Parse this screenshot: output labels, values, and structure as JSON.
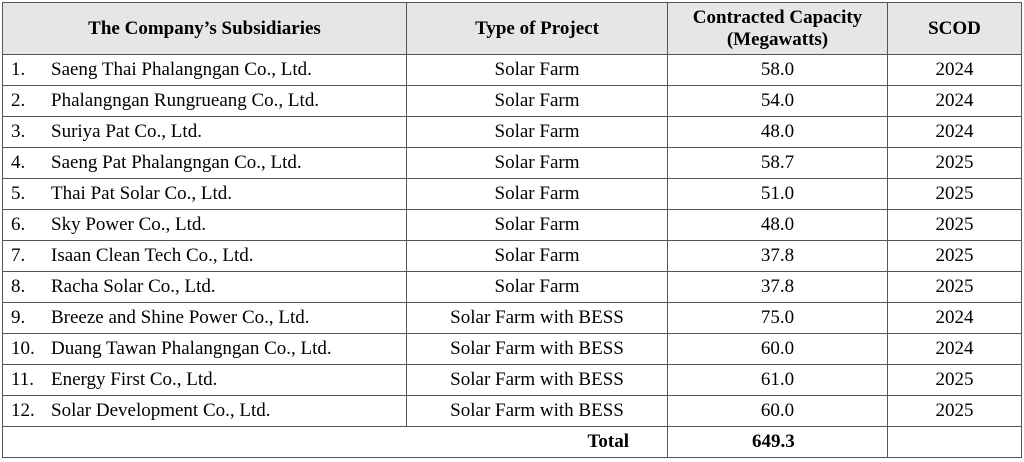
{
  "table": {
    "headers": {
      "subsidiary": "The Company’s Subsidiaries",
      "project_type": "Type of Project",
      "capacity_line1": "Contracted Capacity",
      "capacity_line2": "(Megawatts)",
      "scod": "SCOD"
    },
    "rows": [
      {
        "num": "1.",
        "name": "Saeng Thai Phalangngan Co., Ltd.",
        "type": "Solar Farm",
        "capacity": "58.0",
        "scod": "2024"
      },
      {
        "num": "2.",
        "name": "Phalangngan Rungrueang Co., Ltd.",
        "type": "Solar Farm",
        "capacity": "54.0",
        "scod": "2024"
      },
      {
        "num": "3.",
        "name": "Suriya Pat Co., Ltd.",
        "type": "Solar Farm",
        "capacity": "48.0",
        "scod": "2024"
      },
      {
        "num": "4.",
        "name": "Saeng Pat Phalangngan Co., Ltd.",
        "type": "Solar Farm",
        "capacity": "58.7",
        "scod": "2025"
      },
      {
        "num": "5.",
        "name": "Thai Pat Solar Co., Ltd.",
        "type": "Solar Farm",
        "capacity": "51.0",
        "scod": "2025"
      },
      {
        "num": "6.",
        "name": "Sky Power Co., Ltd.",
        "type": "Solar Farm",
        "capacity": "48.0",
        "scod": "2025"
      },
      {
        "num": "7.",
        "name": "Isaan Clean Tech Co., Ltd.",
        "type": "Solar Farm",
        "capacity": "37.8",
        "scod": "2025"
      },
      {
        "num": "8.",
        "name": "Racha Solar Co., Ltd.",
        "type": "Solar Farm",
        "capacity": "37.8",
        "scod": "2025"
      },
      {
        "num": "9.",
        "name": "Breeze and Shine Power Co., Ltd.",
        "type": "Solar Farm with BESS",
        "capacity": "75.0",
        "scod": "2024"
      },
      {
        "num": "10.",
        "name": "Duang Tawan Phalangngan Co., Ltd.",
        "type": "Solar Farm with BESS",
        "capacity": "60.0",
        "scod": "2024"
      },
      {
        "num": "11.",
        "name": "Energy First Co., Ltd.",
        "type": "Solar Farm with BESS",
        "capacity": "61.0",
        "scod": "2025"
      },
      {
        "num": "12.",
        "name": "Solar Development Co., Ltd.",
        "type": "Solar Farm with BESS",
        "capacity": "60.0",
        "scod": "2025"
      }
    ],
    "total": {
      "label": "Total",
      "capacity": "649.3"
    }
  }
}
